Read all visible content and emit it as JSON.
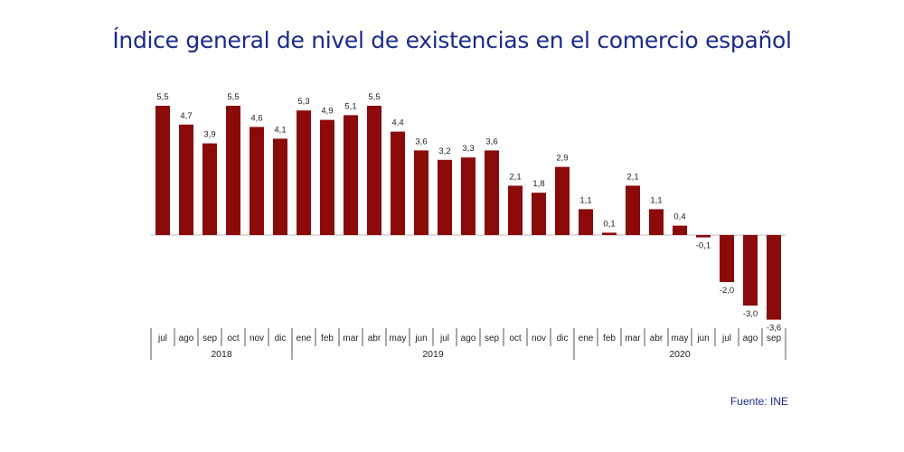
{
  "chart_data": {
    "type": "bar",
    "title": "Índice general de nivel de existencias en el comercio español",
    "source": "Fuente: INE",
    "bar_color": "#8b0a0a",
    "title_color": "#1a2a8c",
    "groups": [
      {
        "year": "2018",
        "months": [
          "jul",
          "ago",
          "sep",
          "oct",
          "nov",
          "dic"
        ]
      },
      {
        "year": "2019",
        "months": [
          "ene",
          "feb",
          "mar",
          "abr",
          "may",
          "jun",
          "jul",
          "ago",
          "sep",
          "oct",
          "nov",
          "dic"
        ]
      },
      {
        "year": "2020",
        "months": [
          "ene",
          "feb",
          "mar",
          "abr",
          "may",
          "jun",
          "jul",
          "ago",
          "sep"
        ]
      }
    ],
    "values": [
      5.5,
      4.7,
      3.9,
      5.5,
      4.6,
      4.1,
      5.3,
      4.9,
      5.1,
      5.5,
      4.4,
      3.6,
      3.2,
      3.3,
      3.6,
      2.1,
      1.8,
      2.9,
      1.1,
      0.1,
      2.1,
      1.1,
      0.4,
      -0.1,
      -2.0,
      -3.0,
      -3.6
    ],
    "ylim": [
      -3.6,
      5.5
    ],
    "decimal_separator": ","
  }
}
